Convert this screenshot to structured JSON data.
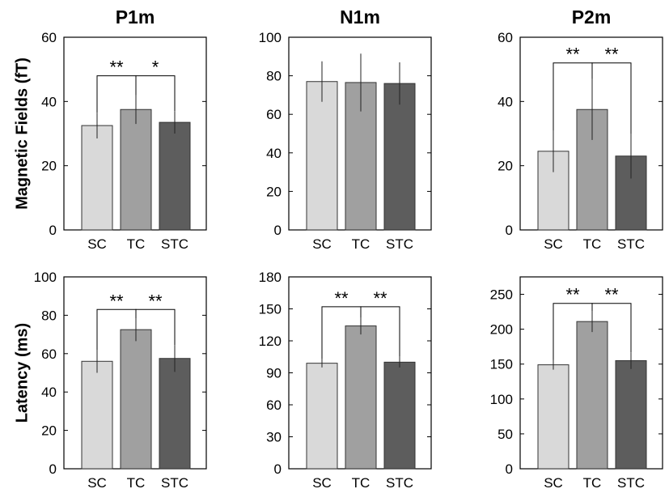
{
  "colors": {
    "SC": "#d9d9d9",
    "TC": "#a0a0a0",
    "STC": "#5d5d5d"
  },
  "chart_data": [
    {
      "type": "bar",
      "title": "P1m",
      "ylabel": "Magnetic Fields (fT)",
      "categories": [
        "SC",
        "TC",
        "STC"
      ],
      "values": [
        32.5,
        37.5,
        33.5
      ],
      "errors": [
        4,
        4.5,
        3.5
      ],
      "ylim": [
        0,
        60
      ],
      "yticks": [
        "0",
        "20",
        "40",
        "60"
      ],
      "significance": [
        {
          "from": 0,
          "to": 1,
          "label": "**",
          "level": 48
        },
        {
          "from": 1,
          "to": 2,
          "label": "*",
          "level": 48
        }
      ]
    },
    {
      "type": "bar",
      "title": "N1m",
      "ylabel": "",
      "categories": [
        "SC",
        "TC",
        "STC"
      ],
      "values": [
        77,
        76.5,
        76
      ],
      "errors": [
        10.5,
        15,
        11
      ],
      "ylim": [
        0,
        100
      ],
      "yticks": [
        "0",
        "20",
        "40",
        "60",
        "80",
        "100"
      ],
      "significance": []
    },
    {
      "type": "bar",
      "title": "P2m",
      "ylabel": "",
      "categories": [
        "SC",
        "TC",
        "STC"
      ],
      "values": [
        24.5,
        37.5,
        23
      ],
      "errors": [
        6.5,
        9.5,
        7
      ],
      "ylim": [
        0,
        60
      ],
      "yticks": [
        "0",
        "20",
        "40",
        "60"
      ],
      "significance": [
        {
          "from": 0,
          "to": 1,
          "label": "**",
          "level": 52
        },
        {
          "from": 1,
          "to": 2,
          "label": "**",
          "level": 52
        }
      ]
    },
    {
      "type": "bar",
      "title": "",
      "ylabel": "Latency (ms)",
      "categories": [
        "SC",
        "TC",
        "STC"
      ],
      "values": [
        56,
        72.5,
        57.5
      ],
      "errors": [
        6,
        6,
        7
      ],
      "ylim": [
        0,
        100
      ],
      "yticks": [
        "0",
        "20",
        "40",
        "60",
        "80",
        "100"
      ],
      "significance": [
        {
          "from": 0,
          "to": 1,
          "label": "**",
          "level": 83
        },
        {
          "from": 1,
          "to": 2,
          "label": "**",
          "level": 83
        }
      ]
    },
    {
      "type": "bar",
      "title": "",
      "ylabel": "",
      "categories": [
        "SC",
        "TC",
        "STC"
      ],
      "values": [
        99,
        134,
        100
      ],
      "errors": [
        4,
        8,
        5
      ],
      "ylim": [
        0,
        180
      ],
      "yticks": [
        "0",
        "30",
        "60",
        "90",
        "120",
        "150",
        "180"
      ],
      "significance": [
        {
          "from": 0,
          "to": 1,
          "label": "**",
          "level": 152
        },
        {
          "from": 1,
          "to": 2,
          "label": "**",
          "level": 152
        }
      ]
    },
    {
      "type": "bar",
      "title": "",
      "ylabel": "",
      "categories": [
        "SC",
        "TC",
        "STC"
      ],
      "values": [
        149,
        211,
        155
      ],
      "errors": [
        7,
        15,
        12
      ],
      "ylim": [
        0,
        275
      ],
      "yticks": [
        "0",
        "50",
        "100",
        "150",
        "200",
        "250"
      ],
      "significance": [
        {
          "from": 0,
          "to": 1,
          "label": "**",
          "level": 237
        },
        {
          "from": 1,
          "to": 2,
          "label": "**",
          "level": 237
        }
      ]
    }
  ]
}
